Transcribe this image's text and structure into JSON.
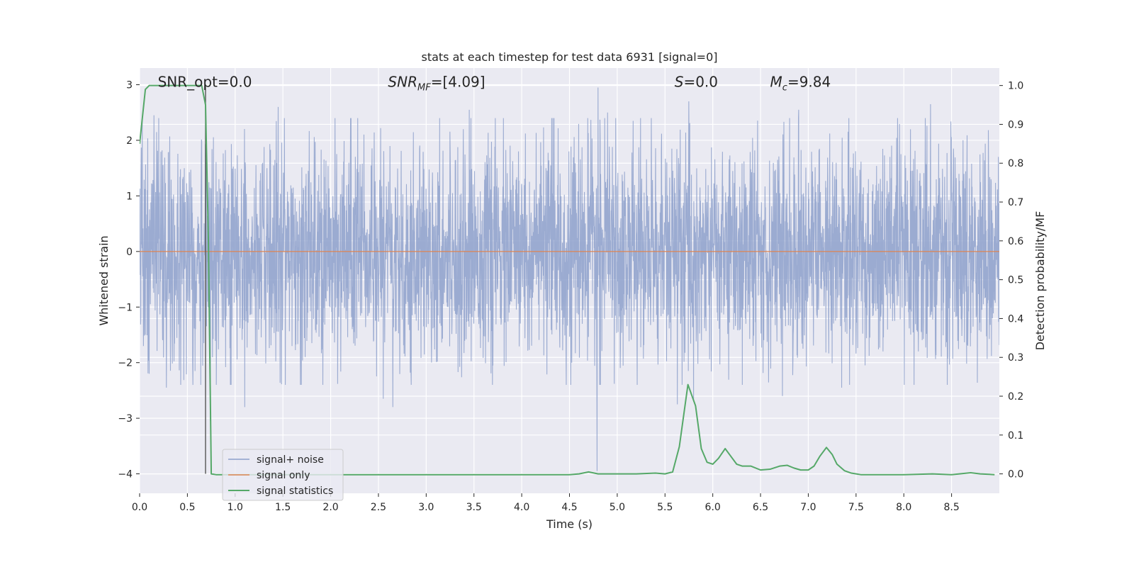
{
  "chart_data": {
    "type": "line",
    "title": "stats at each timestep for test data 6931 [signal=0]",
    "xlabel": "Time (s)",
    "ylabel_left": "Whitened strain",
    "ylabel_right": "Detection probability/MF",
    "xlim": [
      0,
      9
    ],
    "ylim_left": [
      -4.35,
      3.3
    ],
    "ylim_right": [
      -0.05,
      1.045
    ],
    "x_ticks": [
      "0.0",
      "0.5",
      "1.0",
      "1.5",
      "2.0",
      "2.5",
      "3.0",
      "3.5",
      "4.0",
      "4.5",
      "5.0",
      "5.5",
      "6.0",
      "6.5",
      "7.0",
      "7.5",
      "8.0",
      "8.5"
    ],
    "x_tick_values": [
      0,
      0.5,
      1.0,
      1.5,
      2.0,
      2.5,
      3.0,
      3.5,
      4.0,
      4.5,
      5.0,
      5.5,
      6.0,
      6.5,
      7.0,
      7.5,
      8.0,
      8.5
    ],
    "y_left_ticks": [
      "3",
      "2",
      "1",
      "0",
      "−1",
      "−2",
      "−3",
      "−4"
    ],
    "y_left_tick_values": [
      3,
      2,
      1,
      0,
      -1,
      -2,
      -3,
      -4
    ],
    "y_right_ticks": [
      "1.0",
      "0.9",
      "0.8",
      "0.7",
      "0.6",
      "0.5",
      "0.4",
      "0.3",
      "0.2",
      "0.1",
      "0.0"
    ],
    "y_right_tick_values": [
      1.0,
      0.9,
      0.8,
      0.7,
      0.6,
      0.5,
      0.4,
      0.3,
      0.2,
      0.1,
      0.0
    ],
    "grid": true,
    "legend_placement": "lower-left",
    "annotations": [
      {
        "text": "SNR_opt=0.0",
        "x": 0.19,
        "y": 3.05
      },
      {
        "text": "SNR_MF=[4.09]",
        "x": 2.6,
        "y": 3.05
      },
      {
        "text": "S=0.0",
        "x": 5.6,
        "y": 3.05
      },
      {
        "text": "M_c=9.84",
        "x": 6.6,
        "y": 3.05
      }
    ],
    "vline": {
      "x": 0.69,
      "y_from": -4.0,
      "y_to": 3.0
    },
    "series": [
      {
        "name": "signal+ noise",
        "axis": "left",
        "color": "#8da0cb",
        "style": "dense noise",
        "x_range": [
          0,
          9
        ],
        "typical_amplitude": 1.0,
        "spikes": [
          {
            "x": 4.8,
            "y": 2.95
          },
          {
            "x": 4.79,
            "y": -3.95
          },
          {
            "x": 5.75,
            "y": 2.7
          },
          {
            "x": 0.74,
            "y": -3.05
          },
          {
            "x": 0.15,
            "y": 2.45
          },
          {
            "x": 1.45,
            "y": 2.6
          },
          {
            "x": 2.55,
            "y": 2.55
          },
          {
            "x": 3.45,
            "y": 2.55
          },
          {
            "x": 4.9,
            "y": 2.5
          },
          {
            "x": 6.9,
            "y": 2.55
          },
          {
            "x": 8.28,
            "y": 2.65
          },
          {
            "x": 1.1,
            "y": -2.8
          },
          {
            "x": 2.65,
            "y": -2.8
          },
          {
            "x": 0.28,
            "y": -2.45
          },
          {
            "x": 5.63,
            "y": -2.75
          },
          {
            "x": 5.8,
            "y": -2.7
          },
          {
            "x": 6.73,
            "y": -2.6
          },
          {
            "x": 7.35,
            "y": -2.45
          },
          {
            "x": 2.55,
            "y": -2.65
          },
          {
            "x": 0.58,
            "y": -2.15
          },
          {
            "x": 0.1,
            "y": -2.2
          }
        ]
      },
      {
        "name": "signal only",
        "axis": "left",
        "color": "#dd8452",
        "x": [
          0,
          9
        ],
        "y": [
          0,
          0
        ]
      },
      {
        "name": "signal statistics",
        "axis": "right",
        "color": "#55a868",
        "x": [
          0.0,
          0.06,
          0.1,
          0.2,
          0.3,
          0.4,
          0.5,
          0.6,
          0.65,
          0.69,
          0.72,
          0.75,
          0.8,
          0.9,
          1.0,
          2.0,
          3.0,
          4.0,
          4.5,
          4.6,
          4.7,
          4.8,
          5.0,
          5.2,
          5.4,
          5.5,
          5.58,
          5.65,
          5.74,
          5.82,
          5.88,
          5.94,
          6.0,
          6.06,
          6.13,
          6.19,
          6.25,
          6.31,
          6.4,
          6.5,
          6.6,
          6.7,
          6.78,
          6.85,
          6.92,
          7.0,
          7.06,
          7.12,
          7.19,
          7.25,
          7.3,
          7.38,
          7.45,
          7.55,
          7.7,
          8.0,
          8.3,
          8.5,
          8.7,
          8.8,
          8.95
        ],
        "y": [
          0.85,
          0.99,
          1.0,
          1.0,
          1.0,
          1.0,
          1.0,
          1.0,
          1.0,
          0.95,
          0.6,
          0.0,
          -0.002,
          -0.002,
          -0.002,
          -0.002,
          -0.002,
          -0.002,
          -0.002,
          0.0,
          0.005,
          0.0,
          0.0,
          0.0,
          0.002,
          0.0,
          0.005,
          0.07,
          0.23,
          0.175,
          0.065,
          0.03,
          0.025,
          0.04,
          0.065,
          0.045,
          0.025,
          0.02,
          0.02,
          0.01,
          0.012,
          0.02,
          0.022,
          0.015,
          0.01,
          0.01,
          0.02,
          0.045,
          0.068,
          0.05,
          0.025,
          0.008,
          0.002,
          -0.002,
          -0.002,
          -0.002,
          0.0,
          -0.002,
          0.003,
          0.0,
          -0.002
        ]
      }
    ]
  }
}
